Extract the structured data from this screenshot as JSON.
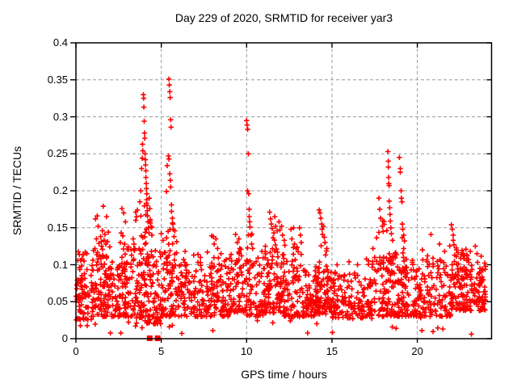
{
  "title": "Day 229 of 2020, SRMTID for receiver yar3",
  "chart_data": {
    "type": "scatter",
    "title": "Day 229 of 2020, SRMTID for receiver yar3",
    "xlabel": "GPS time / hours",
    "ylabel": "SRMTID / TECUs",
    "xlim": [
      0,
      24.35
    ],
    "ylim": [
      0,
      0.4
    ],
    "grid": true,
    "grid_color": "#9a9a9a",
    "marker": {
      "shape": "plus",
      "color": "#ff0000",
      "size": 7
    },
    "x_ticks": [
      {
        "v": 0,
        "label": "0"
      },
      {
        "v": 5,
        "label": "5"
      },
      {
        "v": 10,
        "label": "10"
      },
      {
        "v": 15,
        "label": "15"
      },
      {
        "v": 20,
        "label": "20"
      }
    ],
    "y_ticks": [
      {
        "v": 0,
        "label": "0"
      },
      {
        "v": 0.05,
        "label": "0.05"
      },
      {
        "v": 0.1,
        "label": "0.1"
      },
      {
        "v": 0.15,
        "label": "0.15"
      },
      {
        "v": 0.2,
        "label": "0.2"
      },
      {
        "v": 0.25,
        "label": "0.25"
      },
      {
        "v": 0.3,
        "label": "0.3"
      },
      {
        "v": 0.35,
        "label": "0.35"
      },
      {
        "v": 0.4,
        "label": "0.4"
      }
    ],
    "series": [
      {
        "name": "SRMTID",
        "color": "#ff0000",
        "points": [
          [
            0.2,
            0.114
          ],
          [
            0.35,
            0.108
          ],
          [
            0.55,
            0.117
          ],
          [
            1.15,
            0.162
          ],
          [
            1.2,
            0.135
          ],
          [
            1.25,
            0.166
          ],
          [
            1.3,
            0.152
          ],
          [
            1.35,
            0.129
          ],
          [
            1.45,
            0.138
          ],
          [
            1.5,
            0.125
          ],
          [
            1.55,
            0.146
          ],
          [
            1.6,
            0.179
          ],
          [
            1.65,
            0.133
          ],
          [
            1.7,
            0.141
          ],
          [
            1.75,
            0.128
          ],
          [
            1.8,
            0.165
          ],
          [
            1.85,
            0.131
          ],
          [
            1.9,
            0.144
          ],
          [
            2.6,
            0.13
          ],
          [
            2.65,
            0.143
          ],
          [
            2.7,
            0.176
          ],
          [
            2.75,
            0.139
          ],
          [
            2.8,
            0.17
          ],
          [
            2.85,
            0.128
          ],
          [
            2.9,
            0.158
          ],
          [
            3.0,
            0.121
          ],
          [
            3.35,
            0.135
          ],
          [
            3.4,
            0.128
          ],
          [
            3.45,
            0.122
          ],
          [
            3.5,
            0.171
          ],
          [
            3.5,
            0.16
          ],
          [
            3.55,
            0.165
          ],
          [
            3.6,
            0.174
          ],
          [
            3.75,
            0.185
          ],
          [
            3.8,
            0.2
          ],
          [
            3.85,
            0.23
          ],
          [
            3.88,
            0.244
          ],
          [
            3.9,
            0.263
          ],
          [
            3.92,
            0.254
          ],
          [
            3.95,
            0.33
          ],
          [
            3.97,
            0.325
          ],
          [
            3.98,
            0.313
          ],
          [
            4.0,
            0.294
          ],
          [
            4.02,
            0.278
          ],
          [
            4.03,
            0.271
          ],
          [
            4.05,
            0.25
          ],
          [
            4.07,
            0.242
          ],
          [
            4.08,
            0.235
          ],
          [
            4.1,
            0.227
          ],
          [
            4.1,
            0.218
          ],
          [
            4.12,
            0.21
          ],
          [
            4.13,
            0.203
          ],
          [
            4.15,
            0.196
          ],
          [
            4.15,
            0.188
          ],
          [
            4.17,
            0.18
          ],
          [
            4.18,
            0.173
          ],
          [
            4.2,
            0.166
          ],
          [
            4.22,
            0.158
          ],
          [
            4.25,
            0.15
          ],
          [
            4.28,
            0.143
          ],
          [
            4.3,
            0.19
          ],
          [
            4.33,
            0.176
          ],
          [
            4.36,
            0.161
          ],
          [
            4.4,
            0.151
          ],
          [
            4.45,
            0.14
          ],
          [
            5.0,
            0.142
          ],
          [
            5.1,
            0.133
          ],
          [
            5.3,
            0.199
          ],
          [
            5.35,
            0.234
          ],
          [
            5.4,
            0.145
          ],
          [
            5.42,
            0.247
          ],
          [
            5.45,
            0.351
          ],
          [
            5.45,
            0.243
          ],
          [
            5.47,
            0.343
          ],
          [
            5.5,
            0.334
          ],
          [
            5.5,
            0.223
          ],
          [
            5.52,
            0.326
          ],
          [
            5.53,
            0.214
          ],
          [
            5.55,
            0.296
          ],
          [
            5.55,
            0.205
          ],
          [
            5.57,
            0.286
          ],
          [
            5.6,
            0.181
          ],
          [
            5.6,
            0.172
          ],
          [
            5.65,
            0.163
          ],
          [
            5.68,
            0.155
          ],
          [
            5.7,
            0.148
          ],
          [
            5.75,
            0.138
          ],
          [
            5.9,
            0.131
          ],
          [
            6.4,
            0.118
          ],
          [
            6.9,
            0.113
          ],
          [
            7.15,
            0.114
          ],
          [
            7.3,
            0.11
          ],
          [
            7.7,
            0.117
          ],
          [
            7.95,
            0.139
          ],
          [
            8.05,
            0.138
          ],
          [
            8.1,
            0.128
          ],
          [
            8.2,
            0.135
          ],
          [
            8.3,
            0.122
          ],
          [
            8.5,
            0.115
          ],
          [
            9.35,
            0.141
          ],
          [
            9.45,
            0.13
          ],
          [
            9.55,
            0.135
          ],
          [
            9.6,
            0.122
          ],
          [
            9.7,
            0.112
          ],
          [
            10.0,
            0.295
          ],
          [
            10.03,
            0.289
          ],
          [
            10.06,
            0.283
          ],
          [
            10.1,
            0.25
          ],
          [
            10.05,
            0.2
          ],
          [
            10.12,
            0.196
          ],
          [
            10.15,
            0.175
          ],
          [
            10.15,
            0.165
          ],
          [
            10.18,
            0.158
          ],
          [
            10.2,
            0.151
          ],
          [
            10.25,
            0.14
          ],
          [
            10.3,
            0.128
          ],
          [
            10.35,
            0.122
          ],
          [
            10.9,
            0.118
          ],
          [
            11.1,
            0.125
          ],
          [
            11.35,
            0.171
          ],
          [
            11.4,
            0.162
          ],
          [
            11.45,
            0.155
          ],
          [
            11.5,
            0.149
          ],
          [
            11.6,
            0.143
          ],
          [
            11.65,
            0.165
          ],
          [
            11.7,
            0.152
          ],
          [
            11.8,
            0.146
          ],
          [
            11.9,
            0.158
          ],
          [
            11.95,
            0.147
          ],
          [
            12.05,
            0.152
          ],
          [
            12.1,
            0.14
          ],
          [
            12.2,
            0.133
          ],
          [
            12.6,
            0.148
          ],
          [
            12.65,
            0.135
          ],
          [
            12.75,
            0.15
          ],
          [
            12.8,
            0.128
          ],
          [
            12.9,
            0.122
          ],
          [
            13.1,
            0.15
          ],
          [
            13.15,
            0.14
          ],
          [
            13.2,
            0.13
          ],
          [
            14.25,
            0.174
          ],
          [
            14.3,
            0.17
          ],
          [
            14.35,
            0.163
          ],
          [
            14.4,
            0.155
          ],
          [
            14.42,
            0.148
          ],
          [
            14.45,
            0.141
          ],
          [
            14.5,
            0.152
          ],
          [
            14.55,
            0.137
          ],
          [
            14.6,
            0.13
          ],
          [
            14.7,
            0.122
          ],
          [
            15.3,
            0.1
          ],
          [
            16.0,
            0.104
          ],
          [
            16.5,
            0.1
          ],
          [
            17.4,
            0.122
          ],
          [
            17.5,
            0.11
          ],
          [
            17.75,
            0.19
          ],
          [
            17.8,
            0.175
          ],
          [
            17.85,
            0.163
          ],
          [
            17.95,
            0.152
          ],
          [
            18.0,
            0.145
          ],
          [
            18.28,
            0.253
          ],
          [
            18.3,
            0.24
          ],
          [
            18.3,
            0.232
          ],
          [
            18.32,
            0.218
          ],
          [
            18.33,
            0.21
          ],
          [
            18.35,
            0.207
          ],
          [
            18.35,
            0.186
          ],
          [
            18.38,
            0.177
          ],
          [
            18.4,
            0.168
          ],
          [
            18.42,
            0.159
          ],
          [
            18.45,
            0.15
          ],
          [
            18.48,
            0.142
          ],
          [
            18.55,
            0.133
          ],
          [
            18.95,
            0.245
          ],
          [
            19.0,
            0.23
          ],
          [
            19.0,
            0.225
          ],
          [
            19.05,
            0.2
          ],
          [
            19.07,
            0.19
          ],
          [
            19.1,
            0.185
          ],
          [
            19.12,
            0.155
          ],
          [
            19.15,
            0.148
          ],
          [
            19.2,
            0.14
          ],
          [
            19.25,
            0.132
          ],
          [
            20.3,
            0.12
          ],
          [
            20.6,
            0.112
          ],
          [
            20.8,
            0.141
          ],
          [
            21.3,
            0.128
          ],
          [
            21.6,
            0.118
          ],
          [
            22.0,
            0.154
          ],
          [
            22.05,
            0.148
          ],
          [
            22.1,
            0.14
          ],
          [
            22.1,
            0.133
          ],
          [
            22.15,
            0.127
          ],
          [
            22.3,
            0.12
          ],
          [
            22.85,
            0.121
          ],
          [
            22.9,
            0.113
          ],
          [
            23.0,
            0.107
          ],
          [
            23.1,
            0.118
          ],
          [
            23.4,
            0.125
          ],
          [
            23.5,
            0.115
          ]
        ]
      }
    ],
    "baseline_clusters": [
      [
        0,
        1,
        80,
        0.025,
        0.115,
        1.7
      ],
      [
        1,
        2,
        85,
        0.03,
        0.125,
        1.7
      ],
      [
        2,
        3,
        80,
        0.03,
        0.115,
        1.7
      ],
      [
        3,
        4,
        75,
        0.028,
        0.125,
        1.7
      ],
      [
        4,
        5,
        85,
        0.02,
        0.12,
        1.7
      ],
      [
        5,
        6,
        75,
        0.03,
        0.12,
        1.7
      ],
      [
        6,
        7,
        60,
        0.03,
        0.1,
        1.7
      ],
      [
        7,
        8,
        62,
        0.03,
        0.108,
        1.7
      ],
      [
        8,
        9,
        65,
        0.03,
        0.11,
        1.7
      ],
      [
        9,
        10,
        62,
        0.035,
        0.118,
        1.7
      ],
      [
        10,
        11,
        65,
        0.03,
        0.11,
        1.7
      ],
      [
        11,
        12,
        75,
        0.035,
        0.125,
        1.7
      ],
      [
        12,
        13,
        70,
        0.03,
        0.115,
        1.7
      ],
      [
        13,
        14,
        62,
        0.03,
        0.1,
        1.7
      ],
      [
        14,
        15,
        72,
        0.033,
        0.105,
        1.7
      ],
      [
        15,
        16,
        55,
        0.028,
        0.09,
        1.7
      ],
      [
        16,
        17,
        52,
        0.028,
        0.09,
        1.7
      ],
      [
        17,
        18,
        62,
        0.03,
        0.108,
        1.7
      ],
      [
        18,
        19,
        78,
        0.03,
        0.118,
        1.7
      ],
      [
        19,
        20,
        66,
        0.03,
        0.11,
        1.7
      ],
      [
        20,
        21,
        62,
        0.03,
        0.11,
        1.7
      ],
      [
        21,
        22,
        60,
        0.03,
        0.108,
        1.7
      ],
      [
        22,
        23,
        82,
        0.038,
        0.118,
        1.7
      ],
      [
        23,
        24,
        85,
        0.038,
        0.112,
        1.7
      ],
      [
        13.5,
        16.2,
        45,
        0.04,
        0.056,
        1.3
      ],
      [
        0,
        24,
        32,
        0.006,
        0.03,
        1.3
      ],
      [
        3.8,
        4.45,
        22,
        0.07,
        0.185,
        1.5
      ],
      [
        5.3,
        5.8,
        14,
        0.07,
        0.17,
        1.5
      ],
      [
        9.9,
        10.35,
        10,
        0.07,
        0.15,
        1.5
      ],
      [
        11.2,
        12.3,
        22,
        0.07,
        0.14,
        1.5
      ],
      [
        14.1,
        14.8,
        16,
        0.07,
        0.14,
        1.5
      ],
      [
        17.6,
        18.6,
        24,
        0.07,
        0.16,
        1.5
      ],
      [
        18.9,
        19.4,
        14,
        0.07,
        0.145,
        1.5
      ],
      [
        21.9,
        23.4,
        18,
        0.07,
        0.13,
        1.5
      ],
      [
        1.1,
        2.1,
        16,
        0.07,
        0.14,
        1.5
      ],
      [
        2.5,
        3.1,
        10,
        0.07,
        0.13,
        1.5
      ],
      [
        0.1,
        0.7,
        8,
        0.07,
        0.12,
        1.5
      ],
      [
        7.9,
        8.5,
        8,
        0.07,
        0.125,
        1.5
      ],
      [
        9.3,
        9.8,
        8,
        0.07,
        0.125,
        1.5
      ],
      [
        12.5,
        13.3,
        10,
        0.07,
        0.125,
        1.5
      ],
      [
        6.2,
        7.8,
        8,
        0.06,
        0.11,
        1.5
      ]
    ],
    "zero_markers": {
      "shape": "filled-square",
      "color": "#ff0000",
      "points": [
        [
          4.32,
          0
        ],
        [
          4.79,
          0
        ]
      ]
    },
    "prng_seed": 20200229
  }
}
